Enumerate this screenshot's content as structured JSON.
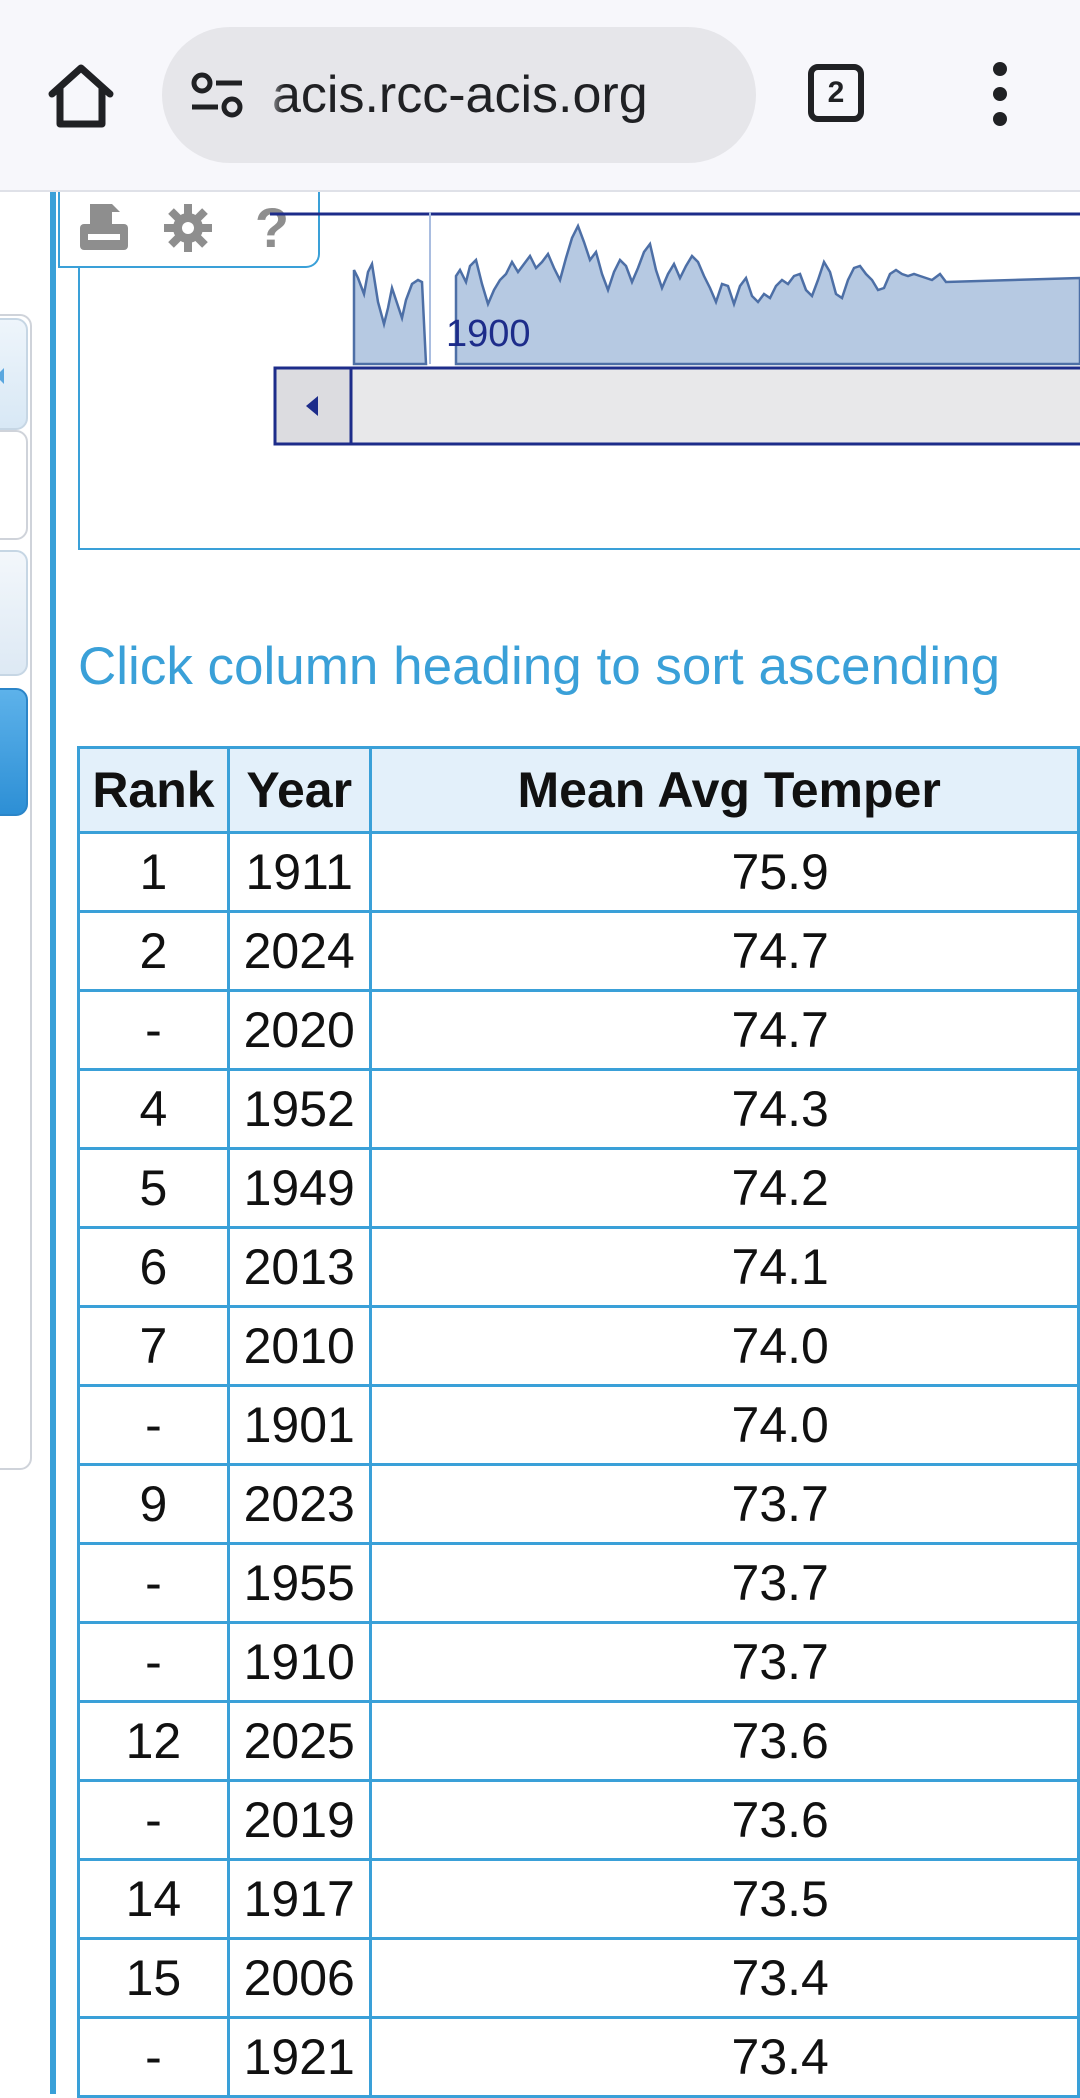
{
  "browser": {
    "url": "acis.rcc-acis.org",
    "tab_count": "2"
  },
  "chart": {
    "navigator_year_label": "1900",
    "toolbar_help": "?"
  },
  "sort_hint": "Click column heading to sort ascending",
  "table": {
    "headers": [
      "Rank",
      "Year",
      "Mean Avg Temper"
    ],
    "rows": [
      {
        "rank": "1",
        "year": "1911",
        "value": "75.9"
      },
      {
        "rank": "2",
        "year": "2024",
        "value": "74.7"
      },
      {
        "rank": "-",
        "year": "2020",
        "value": "74.7"
      },
      {
        "rank": "4",
        "year": "1952",
        "value": "74.3"
      },
      {
        "rank": "5",
        "year": "1949",
        "value": "74.2"
      },
      {
        "rank": "6",
        "year": "2013",
        "value": "74.1"
      },
      {
        "rank": "7",
        "year": "2010",
        "value": "74.0"
      },
      {
        "rank": "-",
        "year": "1901",
        "value": "74.0"
      },
      {
        "rank": "9",
        "year": "2023",
        "value": "73.7"
      },
      {
        "rank": "-",
        "year": "1955",
        "value": "73.7"
      },
      {
        "rank": "-",
        "year": "1910",
        "value": "73.7"
      },
      {
        "rank": "12",
        "year": "2025",
        "value": "73.6"
      },
      {
        "rank": "-",
        "year": "2019",
        "value": "73.6"
      },
      {
        "rank": "14",
        "year": "1917",
        "value": "73.5"
      },
      {
        "rank": "15",
        "year": "2006",
        "value": "73.4"
      },
      {
        "rank": "-",
        "year": "1921",
        "value": "73.4"
      }
    ]
  }
}
